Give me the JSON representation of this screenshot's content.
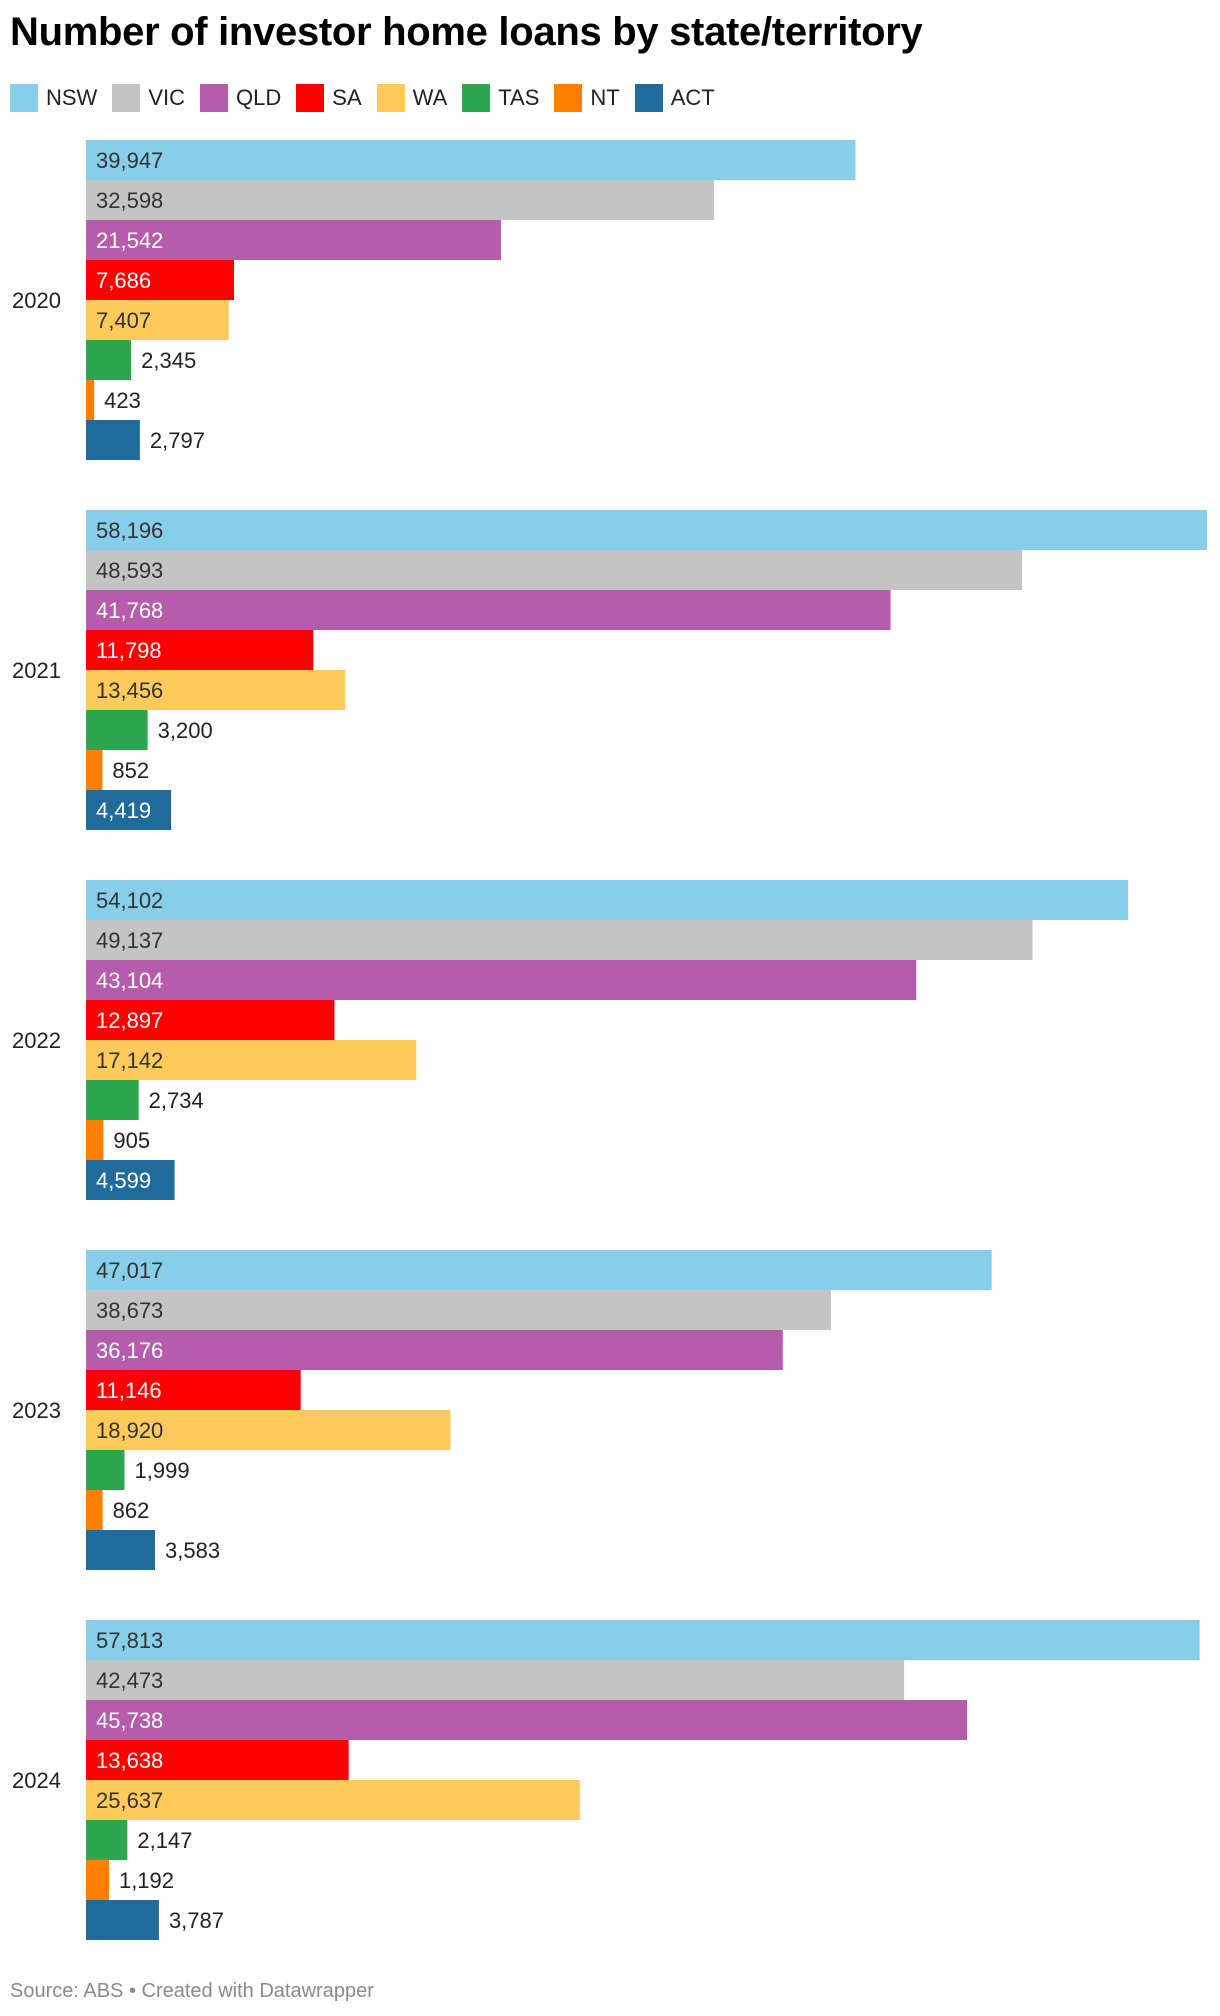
{
  "chart_data": {
    "type": "bar",
    "orientation": "horizontal",
    "title": "Number of investor home loans by state/territory",
    "categories": [
      "2020",
      "2021",
      "2022",
      "2023",
      "2024"
    ],
    "series": [
      {
        "name": "NSW",
        "color": "#87ceeb",
        "label_color": "#333333",
        "values": [
          39947,
          58196,
          54102,
          47017,
          57813
        ]
      },
      {
        "name": "VIC",
        "color": "#c4c4c4",
        "label_color": "#333333",
        "values": [
          32598,
          48593,
          49137,
          38673,
          42473
        ]
      },
      {
        "name": "QLD",
        "color": "#b55dab",
        "label_color": "#ffffff",
        "values": [
          21542,
          41768,
          43104,
          36176,
          45738
        ]
      },
      {
        "name": "SA",
        "color": "#ff0000",
        "label_color": "#ffffff",
        "values": [
          7686,
          11798,
          12897,
          11146,
          13638
        ]
      },
      {
        "name": "WA",
        "color": "#ffca5c",
        "label_color": "#333333",
        "values": [
          7407,
          13456,
          17142,
          18920,
          25637
        ]
      },
      {
        "name": "TAS",
        "color": "#2da651",
        "label_color": "#ffffff",
        "values": [
          2345,
          3200,
          2734,
          1999,
          2147
        ]
      },
      {
        "name": "NT",
        "color": "#ff7f00",
        "label_color": "#ffffff",
        "values": [
          423,
          852,
          905,
          862,
          1192
        ]
      },
      {
        "name": "ACT",
        "color": "#1f6c9c",
        "label_color": "#ffffff",
        "values": [
          2797,
          4419,
          4599,
          3583,
          3787
        ]
      }
    ],
    "xlim": [
      0,
      58196
    ],
    "legend_position": "top-left",
    "grid": false
  },
  "footer": "Source: ABS • Created with Datawrapper"
}
